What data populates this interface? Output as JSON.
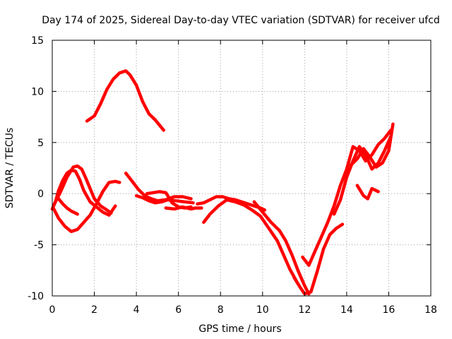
{
  "chart_data": {
    "type": "scatter",
    "title": "Day 174 of 2025, Sidereal Day-to-day VTEC variation (SDTVAR) for receiver ufcd",
    "xlabel": "GPS time / hours",
    "ylabel": "SDTVAR / TECUs",
    "xlim": [
      0,
      18
    ],
    "ylim": [
      -10,
      15
    ],
    "xticks": [
      0,
      2,
      4,
      6,
      8,
      10,
      12,
      14,
      16,
      18
    ],
    "yticks": [
      -10,
      -5,
      0,
      5,
      10,
      15
    ],
    "grid": true,
    "marker_color": "#ff0000",
    "series": [
      {
        "name": "arc-1",
        "x": [
          1.65,
          2.0,
          2.3,
          2.6,
          2.9,
          3.2,
          3.5,
          3.7,
          4.0,
          4.3,
          4.6,
          4.9,
          5.3
        ],
        "y": [
          7.1,
          7.6,
          8.8,
          10.2,
          11.2,
          11.8,
          12.0,
          11.6,
          10.6,
          9.0,
          7.8,
          7.2,
          6.2
        ]
      },
      {
        "name": "arc-2",
        "x": [
          0.0,
          0.15,
          0.3,
          0.5,
          0.7,
          0.9,
          1.1,
          1.3,
          1.5,
          1.8,
          2.1,
          2.4,
          2.7,
          3.0
        ],
        "y": [
          -1.5,
          -0.8,
          0.3,
          1.3,
          2.0,
          2.3,
          2.2,
          1.4,
          0.3,
          -0.8,
          -1.3,
          -1.8,
          -2.1,
          -1.2
        ]
      },
      {
        "name": "arc-3",
        "x": [
          0.05,
          0.3,
          0.6,
          0.9,
          1.2,
          1.5,
          1.8,
          2.1,
          2.4,
          2.7,
          3.0,
          3.2
        ],
        "y": [
          -1.4,
          -2.4,
          -3.2,
          -3.7,
          -3.5,
          -2.8,
          -2.1,
          -1.0,
          0.2,
          1.1,
          1.2,
          1.1
        ]
      },
      {
        "name": "arc-4",
        "x": [
          0.1,
          0.4,
          0.7,
          1.0,
          1.2,
          1.4,
          1.6,
          1.8,
          2.0,
          2.3,
          2.6,
          2.8
        ],
        "y": [
          -1.0,
          0.2,
          1.6,
          2.6,
          2.7,
          2.4,
          1.5,
          0.5,
          -0.5,
          -1.2,
          -1.6,
          -1.9
        ]
      },
      {
        "name": "arc-5",
        "x": [
          0.3,
          0.5,
          0.7,
          0.9,
          1.2
        ],
        "y": [
          -0.5,
          -1.0,
          -1.4,
          -1.7,
          -2.0
        ]
      },
      {
        "name": "arc-6",
        "x": [
          3.5,
          3.8,
          4.1,
          4.4,
          4.7,
          5.0,
          5.4,
          5.8,
          6.2,
          6.6
        ],
        "y": [
          2.0,
          1.2,
          0.4,
          -0.2,
          -0.5,
          -0.7,
          -0.6,
          -0.3,
          -0.3,
          -0.5
        ]
      },
      {
        "name": "arc-7",
        "x": [
          4.0,
          4.3,
          4.6,
          4.9,
          5.2,
          5.5,
          5.9,
          6.3,
          6.7
        ],
        "y": [
          -0.2,
          -0.4,
          -0.7,
          -0.9,
          -0.8,
          -0.6,
          -0.7,
          -0.8,
          -0.9
        ]
      },
      {
        "name": "arc-8",
        "x": [
          4.5,
          4.8,
          5.1,
          5.4,
          5.7,
          6.0,
          6.3,
          6.6
        ],
        "y": [
          0.0,
          0.1,
          0.2,
          0.1,
          -0.9,
          -1.3,
          -1.4,
          -1.3
        ]
      },
      {
        "name": "arc-9",
        "x": [
          5.4,
          5.8,
          6.2,
          6.6,
          6.8,
          7.1
        ],
        "y": [
          -1.4,
          -1.5,
          -1.3,
          -1.5,
          -1.4,
          -1.4
        ]
      },
      {
        "name": "arc-10",
        "x": [
          6.9,
          7.2,
          7.5,
          7.8,
          8.1,
          8.4,
          8.7,
          9.0,
          9.3,
          9.6,
          9.9,
          10.1
        ],
        "y": [
          -1.0,
          -0.9,
          -0.6,
          -0.3,
          -0.3,
          -0.5,
          -0.6,
          -0.8,
          -1.0,
          -1.2,
          -1.4,
          -1.6
        ]
      },
      {
        "name": "arc-11",
        "x": [
          7.2,
          7.5,
          7.9,
          8.3,
          8.7,
          9.1,
          9.5,
          9.9,
          10.3,
          10.7,
          11.0,
          11.3,
          11.6
        ],
        "y": [
          -2.8,
          -2.0,
          -1.2,
          -0.6,
          -0.8,
          -1.1,
          -1.6,
          -2.2,
          -3.4,
          -4.6,
          -6.0,
          -7.4,
          -8.5
        ]
      },
      {
        "name": "arc-12",
        "x": [
          9.6,
          10.0,
          10.4,
          10.8,
          11.1,
          11.4,
          11.7,
          12.0,
          12.2
        ],
        "y": [
          -0.8,
          -1.8,
          -2.8,
          -3.6,
          -4.6,
          -6.0,
          -7.6,
          -9.0,
          -9.8
        ]
      },
      {
        "name": "arc-13",
        "x": [
          11.5,
          11.8,
          12.0,
          12.3,
          12.6,
          12.9,
          13.2,
          13.5,
          13.8
        ],
        "y": [
          -8.2,
          -9.2,
          -9.8,
          -9.6,
          -7.6,
          -5.4,
          -4.0,
          -3.4,
          -3.0
        ]
      },
      {
        "name": "arc-14",
        "x": [
          11.9,
          12.2,
          12.5,
          12.8,
          13.1,
          13.4,
          13.7,
          14.0,
          14.3,
          14.6,
          14.9,
          15.2,
          15.5,
          15.8,
          16.1
        ],
        "y": [
          -6.2,
          -7.0,
          -5.6,
          -4.2,
          -2.8,
          -1.2,
          0.8,
          2.4,
          4.6,
          4.2,
          3.2,
          3.8,
          4.8,
          5.4,
          6.2
        ]
      },
      {
        "name": "arc-15",
        "x": [
          13.4,
          13.7,
          14.0,
          14.3,
          14.6,
          14.9,
          15.2,
          15.5,
          15.8,
          16.1
        ],
        "y": [
          -2.0,
          -0.6,
          1.6,
          3.2,
          4.6,
          3.8,
          2.4,
          3.0,
          4.2,
          5.6
        ]
      },
      {
        "name": "arc-16",
        "x": [
          14.2,
          14.5,
          14.8,
          15.1,
          15.4,
          15.7,
          16.0,
          16.2
        ],
        "y": [
          2.8,
          3.4,
          4.4,
          3.6,
          2.6,
          3.0,
          4.2,
          6.8
        ]
      },
      {
        "name": "arc-17",
        "x": [
          14.5,
          14.8,
          15.0,
          15.2,
          15.5
        ],
        "y": [
          0.8,
          -0.2,
          -0.5,
          0.5,
          0.2
        ]
      }
    ]
  }
}
